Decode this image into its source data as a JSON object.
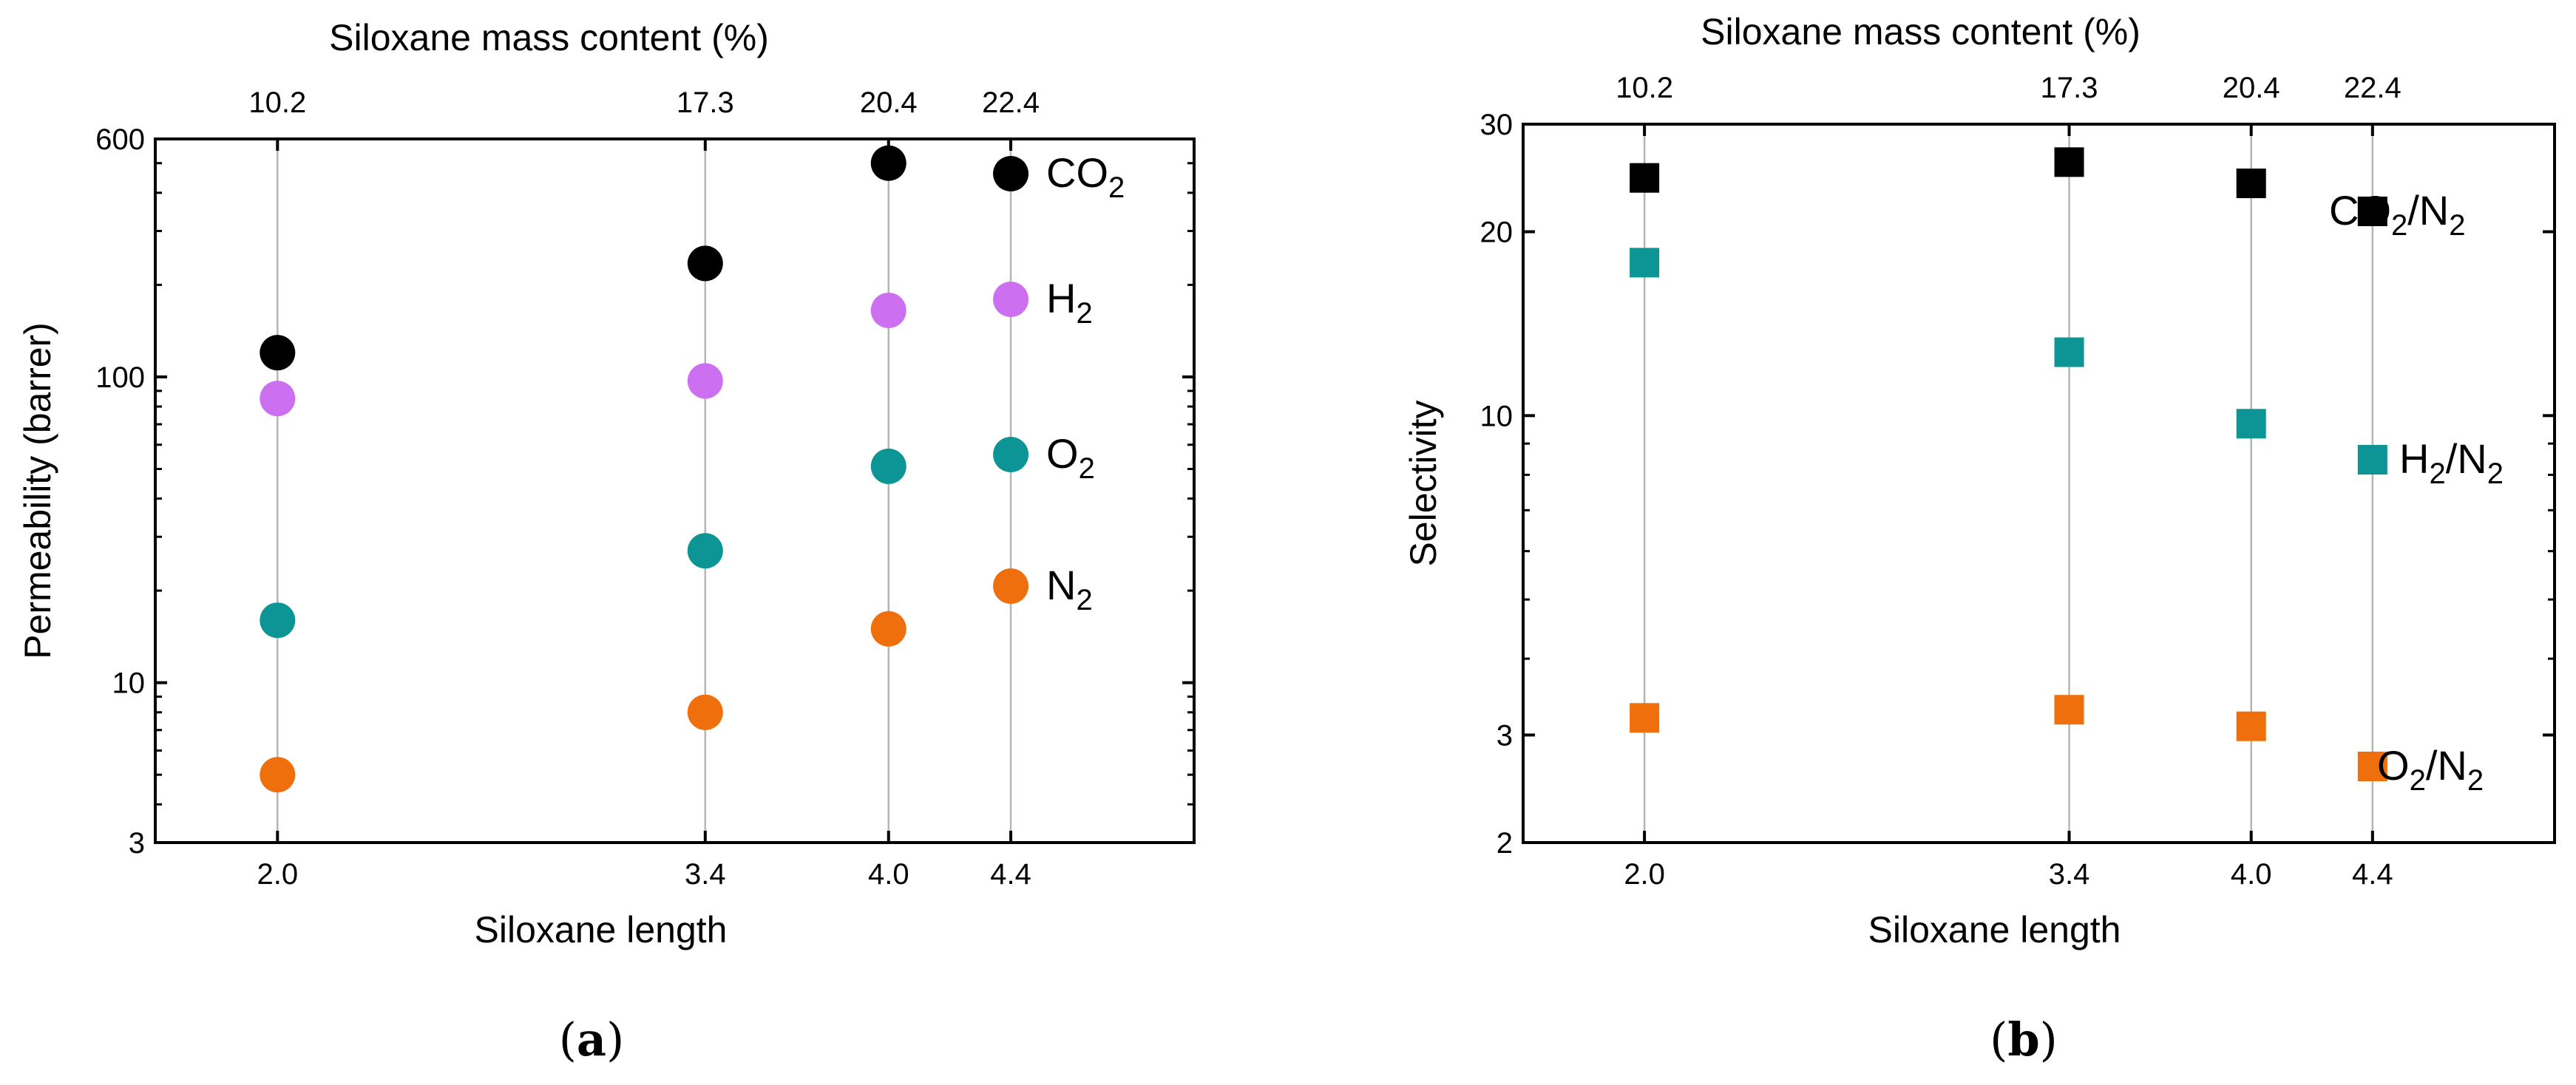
{
  "chart_data": [
    {
      "panel_label": "(a)",
      "type": "scatter",
      "marker": "circle",
      "xlabel": "Siloxane length",
      "x2label": "Siloxane mass content (%)",
      "ylabel": "Permeability (barrer)",
      "yscale": "log",
      "ylim": [
        3,
        600
      ],
      "xlim": [
        1.6,
        5.0
      ],
      "x_ticks": [
        "2.0",
        "3.4",
        "4.0",
        "4.4"
      ],
      "x2_ticks": [
        "10.2",
        "17.3",
        "20.4",
        "22.4"
      ],
      "y_ticks": [
        "3",
        "10",
        "100",
        "600"
      ],
      "grid": "vertical lines at x ticks",
      "x": [
        2.0,
        3.4,
        4.0
      ],
      "series": [
        {
          "name": "CO2",
          "label_main": "CO",
          "label_sub": "2",
          "color": "#000000",
          "values": [
            120,
            235,
            500
          ]
        },
        {
          "name": "H2",
          "label_main": "H",
          "label_sub": "2",
          "color": "#cc6ff0",
          "values": [
            85,
            97,
            165
          ]
        },
        {
          "name": "O2",
          "label_main": "O",
          "label_sub": "2",
          "color": "#0d9595",
          "values": [
            16,
            27,
            51
          ]
        },
        {
          "name": "N2",
          "label_main": "N",
          "label_sub": "2",
          "color": "#ee6f0c",
          "values": [
            5,
            8,
            15
          ]
        }
      ],
      "legend": "right, inline labels"
    },
    {
      "panel_label": "(b)",
      "type": "scatter",
      "marker": "square",
      "xlabel": "Siloxane length",
      "x2label": "Siloxane mass content (%)",
      "ylabel": "Selectivity",
      "yscale": "log",
      "ylim": [
        2,
        30
      ],
      "xlim": [
        1.6,
        5.0
      ],
      "x_ticks": [
        "2.0",
        "3.4",
        "4.0",
        "4.4"
      ],
      "x2_ticks": [
        "10.2",
        "17.3",
        "20.4",
        "22.4"
      ],
      "y_ticks": [
        "2",
        "3",
        "10",
        "20",
        "30"
      ],
      "grid": "vertical lines at x ticks",
      "x": [
        2.0,
        3.4,
        4.0
      ],
      "series": [
        {
          "name": "CO2/N2",
          "label_parts": [
            "CO",
            "2",
            "/N",
            "2"
          ],
          "color": "#000000",
          "values": [
            24.5,
            26,
            24
          ]
        },
        {
          "name": "H2/N2",
          "label_parts": [
            "H",
            "2",
            "/N",
            "2"
          ],
          "color": "#0d9595",
          "values": [
            17.8,
            12.7,
            9.7
          ]
        },
        {
          "name": "O2/N2",
          "label_parts": [
            "O",
            "2",
            "/N",
            "2"
          ],
          "color": "#ee6f0c",
          "values": [
            3.2,
            3.3,
            3.1
          ]
        }
      ],
      "legend": "right, inline labels"
    }
  ]
}
